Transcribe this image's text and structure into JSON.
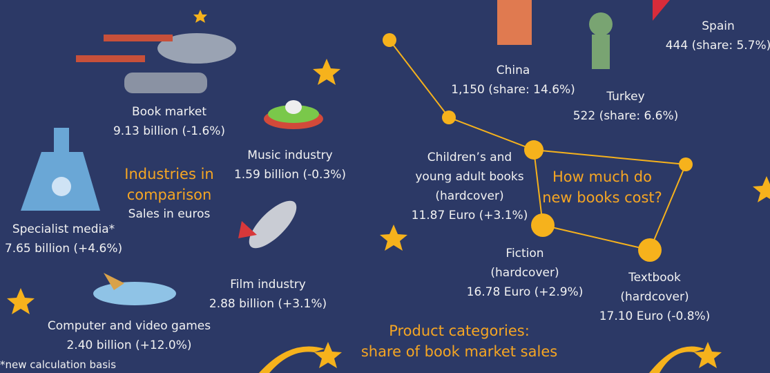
{
  "industries": {
    "title": [
      "Industries in",
      "comparison"
    ],
    "subtitle": "Sales in euros",
    "items": [
      {
        "name": "Book market",
        "value": "9.13 billion (-1.6%)"
      },
      {
        "name": "Music industry",
        "value": "1.59 billion (-0.3%)"
      },
      {
        "name": "Specialist media*",
        "value": "7.65 billion (+4.6%)"
      },
      {
        "name": "Film industry",
        "value": "2.88 billion (+3.1%)"
      },
      {
        "name": "Computer and video games",
        "value": "2.40 billion (+12.0%)"
      }
    ],
    "footnote": "*new calculation basis"
  },
  "countries": [
    {
      "name": "China",
      "value": "1,150 (share: 14.6%)"
    },
    {
      "name": "Turkey",
      "value": "522 (share: 6.6%)"
    },
    {
      "name": "Spain",
      "value": "444 (share: 5.7%)"
    }
  ],
  "prices": {
    "title": [
      "How much do",
      "new books cost?"
    ],
    "items": [
      {
        "name": [
          "Children’s and",
          "young adult books",
          "(hardcover)"
        ],
        "value": "11.87 Euro (+3.1%)"
      },
      {
        "name": [
          "Fiction",
          "(hardcover)"
        ],
        "value": "16.78 Euro (+2.9%)"
      },
      {
        "name": [
          "Textbook",
          "(hardcover)"
        ],
        "value": "17.10 Euro (-0.8%)"
      }
    ]
  },
  "product_categories": {
    "title": [
      "Product categories:",
      "share of book market sales"
    ]
  }
}
